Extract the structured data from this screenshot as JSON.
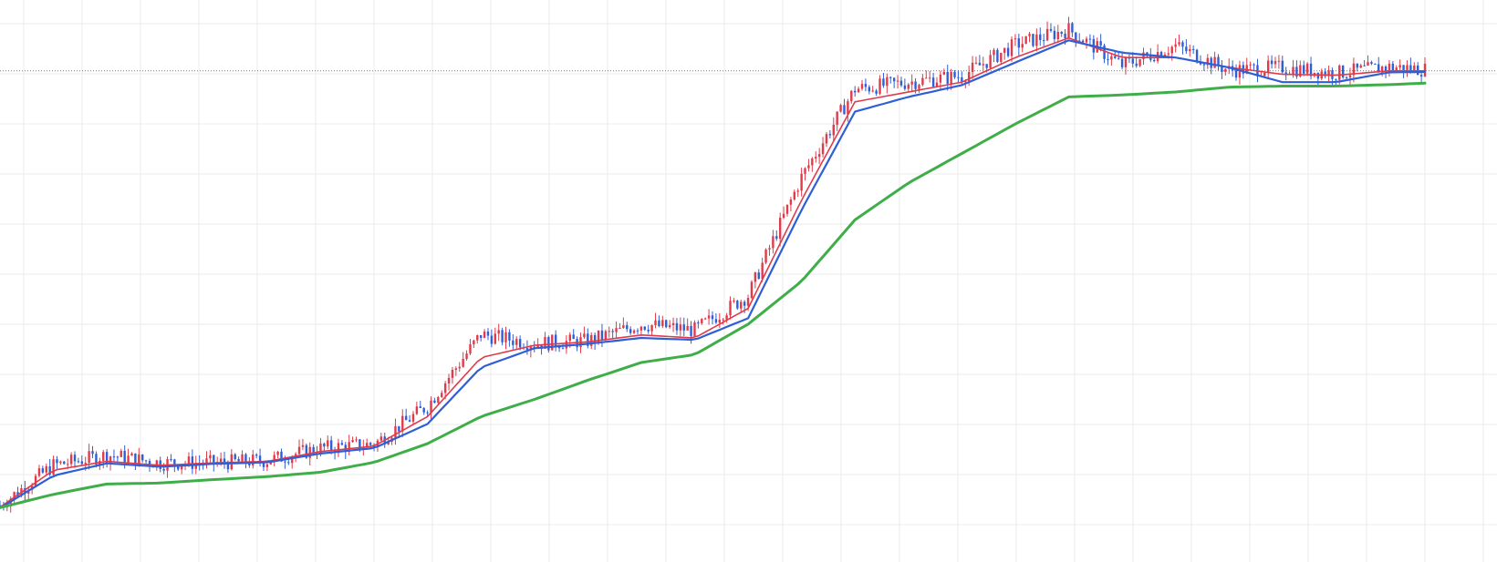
{
  "chart_data": {
    "type": "line",
    "title": "",
    "xlabel": "",
    "ylabel": "",
    "grid": true,
    "x": [
      0,
      15,
      30,
      45,
      60,
      75,
      90,
      105,
      120,
      135,
      150,
      165,
      180,
      195,
      210,
      225,
      240,
      255,
      270,
      285,
      300,
      315,
      330,
      345,
      360,
      375,
      390,
      400
    ],
    "ylim": [
      0,
      100
    ],
    "reference_line": {
      "style": "dotted",
      "value": 89.3
    },
    "series": [
      {
        "kind": "candles",
        "values": [
          1.0,
          9.1,
          11.2,
          9.6,
          9.6,
          10.1,
          12.6,
          13.4,
          21.2,
          35.7,
          33.9,
          34.4,
          37.8,
          36.6,
          43.6,
          67.7,
          85.6,
          87.0,
          88.3,
          94.6,
          97.7,
          90.4,
          94.4,
          89.4,
          90.0,
          88.8,
          90.1,
          89.6
        ]
      },
      {
        "kind": "fast-ma",
        "values": [
          0.6,
          8.1,
          9.9,
          9.1,
          9.6,
          9.9,
          11.9,
          13.0,
          19.0,
          31.0,
          33.5,
          34.2,
          35.6,
          35.0,
          41.0,
          63.0,
          83.0,
          85.0,
          87.0,
          92.0,
          96.0,
          92.0,
          92.0,
          90.0,
          88.6,
          88.4,
          89.3,
          89.3
        ]
      },
      {
        "kind": "mid-ma",
        "values": [
          0.4,
          7.0,
          9.5,
          8.8,
          9.4,
          9.7,
          11.5,
          12.6,
          17.5,
          29.0,
          32.9,
          33.8,
          35.0,
          34.6,
          39.0,
          61.0,
          81.0,
          84.0,
          86.4,
          91.0,
          95.5,
          93.0,
          92.0,
          90.0,
          87.0,
          87.0,
          89.0,
          89.1
        ]
      },
      {
        "kind": "slow-ma",
        "values": [
          0.5,
          3.2,
          5.3,
          5.5,
          6.2,
          6.8,
          7.7,
          9.7,
          13.5,
          19.0,
          22.5,
          26.4,
          30.0,
          31.6,
          37.8,
          46.5,
          59.0,
          66.5,
          72.5,
          78.5,
          84.0,
          84.4,
          85.0,
          86.0,
          86.2,
          86.2,
          86.5,
          86.8
        ]
      }
    ]
  },
  "style": {
    "candle_up_color": "#e03b4b",
    "candle_down_color": "#2f5fd6",
    "fast_ma_color": "#e03b4b",
    "mid_ma_color": "#2f5fd6",
    "slow_ma_color": "#3fae49",
    "grid_color": "#ebebeb",
    "reference_line_color": "#7a7a7a"
  }
}
